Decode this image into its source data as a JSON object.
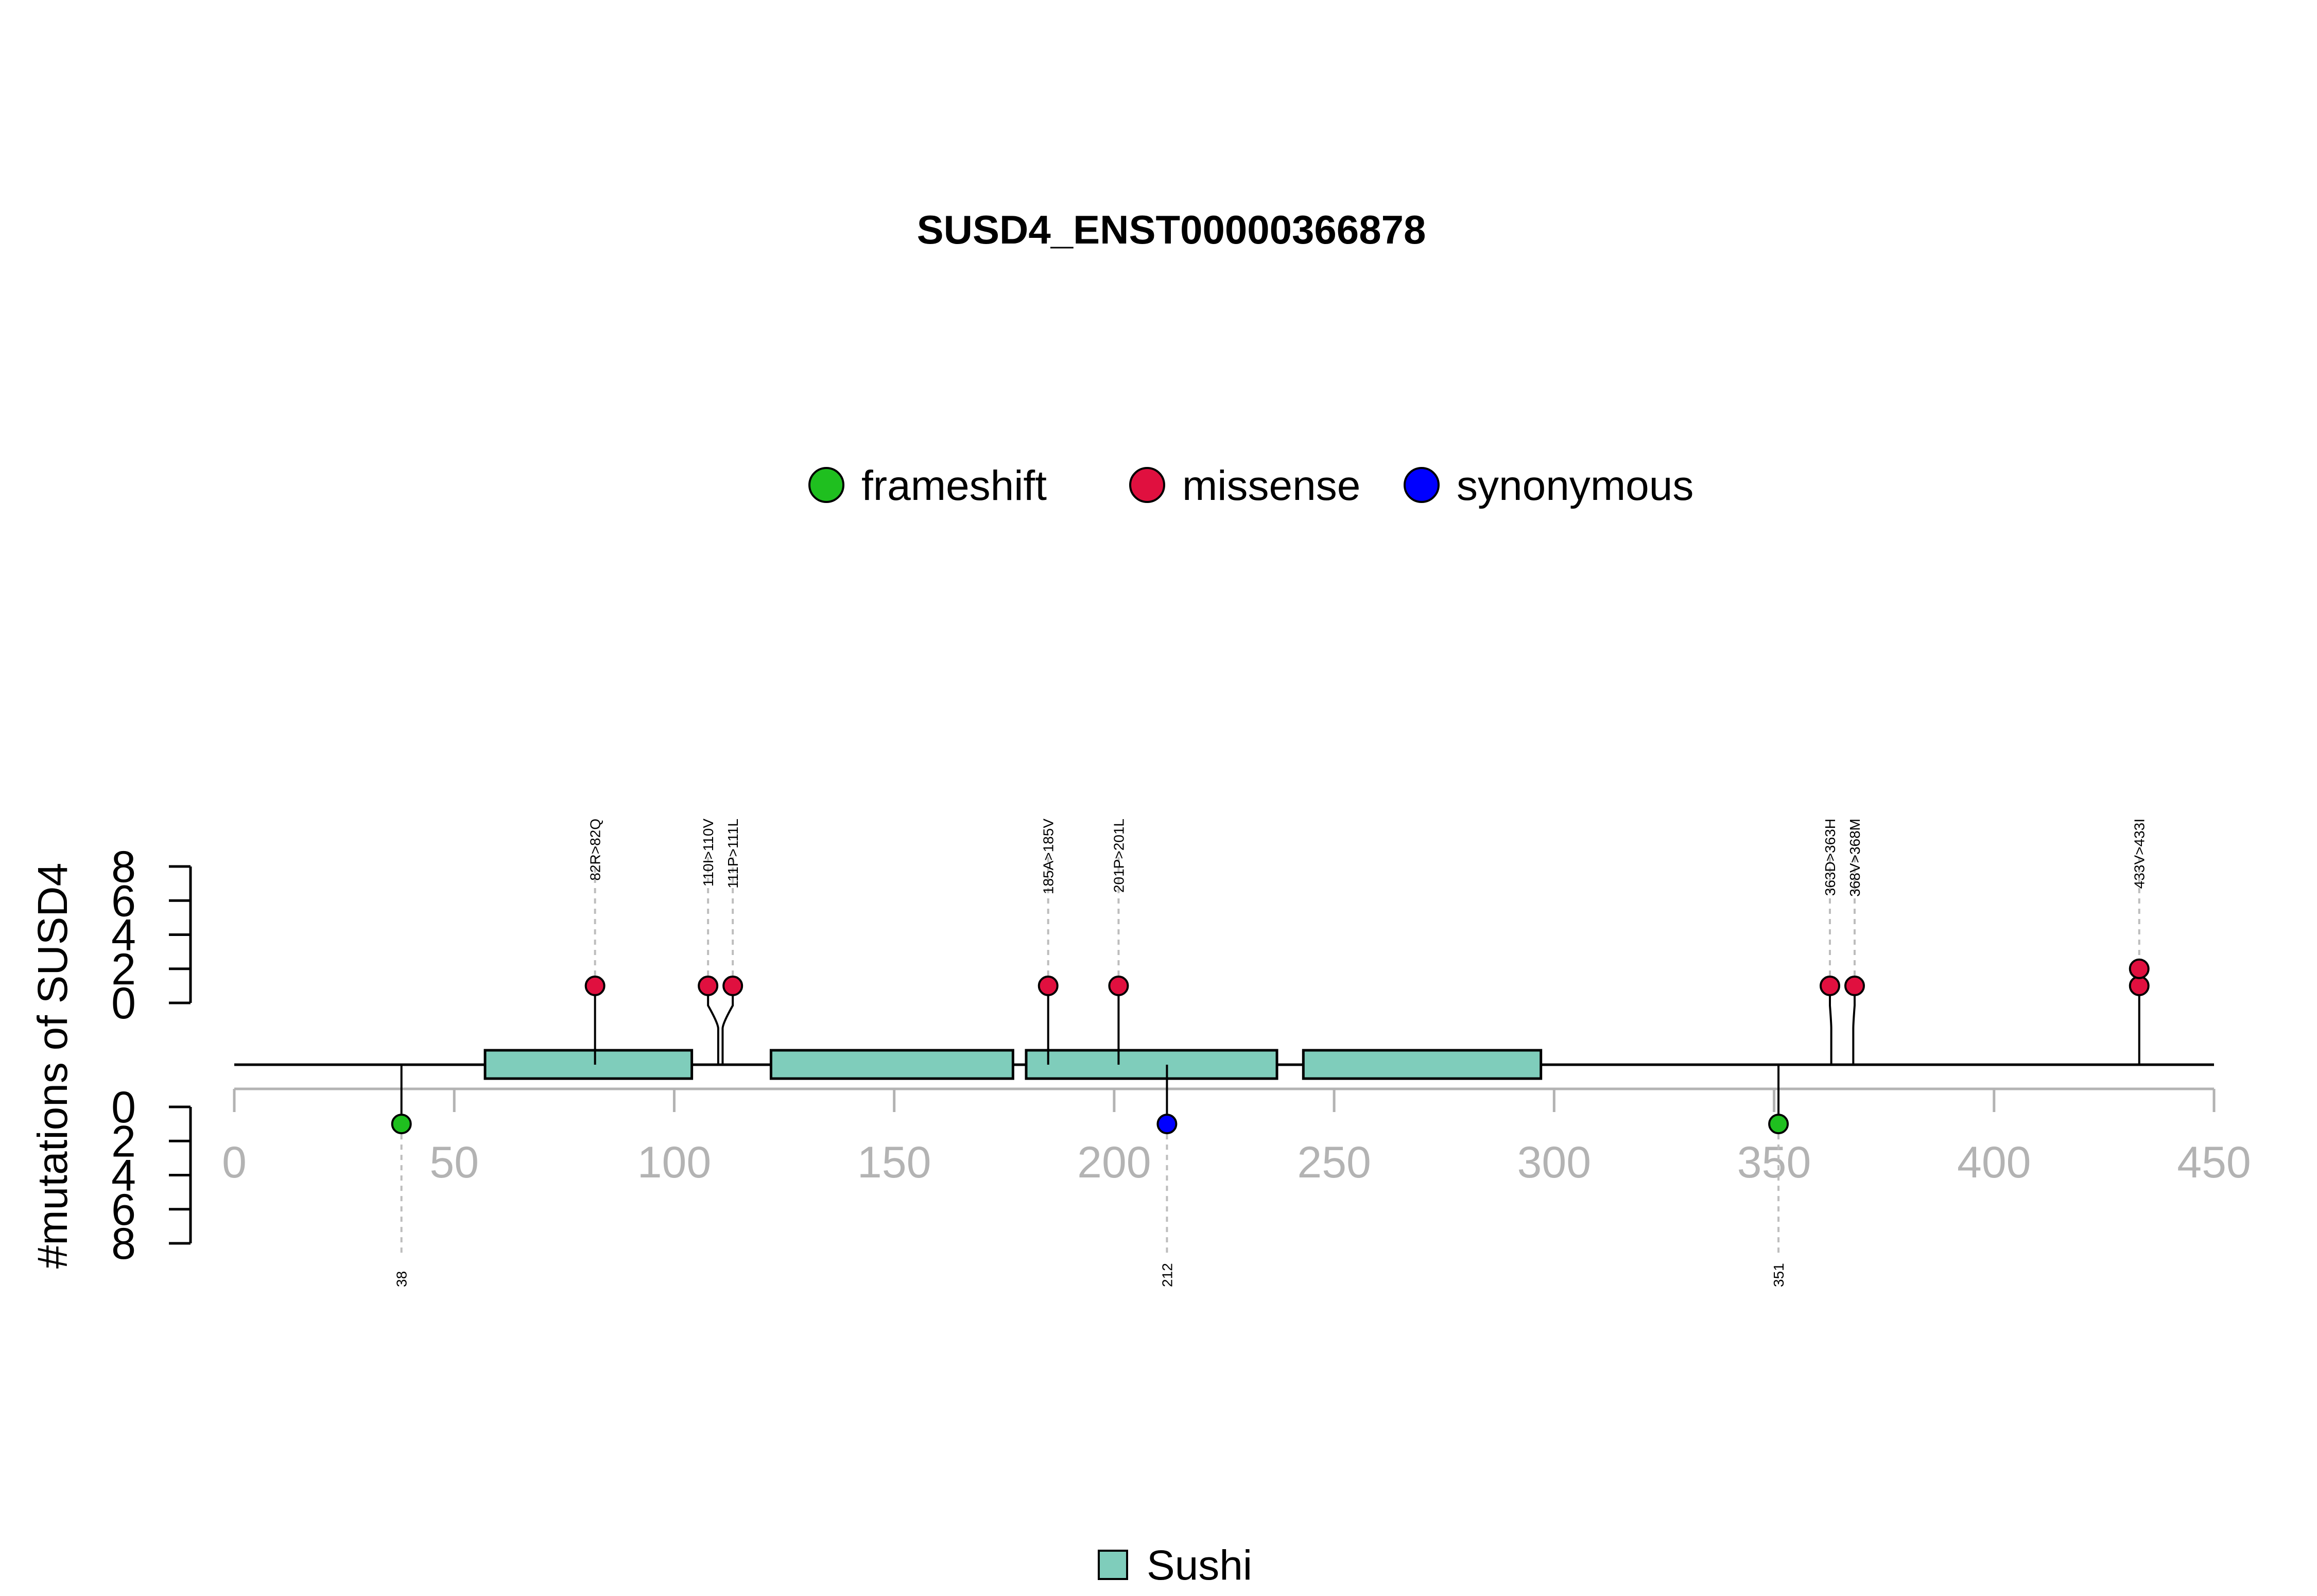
{
  "chart_data": {
    "type": "lollipop",
    "title": "SUSD4_ENST00000366878",
    "ylabel": "#mutations of SUSD4",
    "xlim": [
      0,
      450
    ],
    "x_ticks": [
      "0",
      "50",
      "100",
      "150",
      "200",
      "250",
      "300",
      "350",
      "400",
      "450"
    ],
    "y_ticks": [
      "0",
      "2",
      "4",
      "6",
      "8"
    ],
    "legend": [
      {
        "name": "frameshift",
        "color": "#1fbf1f"
      },
      {
        "name": "missense",
        "color": "#e0103f"
      },
      {
        "name": "synonymous",
        "color": "#0000ff"
      }
    ],
    "domain_legend": [
      {
        "name": "Sushi",
        "color": "#7fcdbb"
      }
    ],
    "domains": [
      {
        "name": "Sushi",
        "start": 57,
        "end": 104
      },
      {
        "name": "Sushi",
        "start": 122,
        "end": 177
      },
      {
        "name": "Sushi",
        "start": 180,
        "end": 237
      },
      {
        "name": "Sushi",
        "start": 243,
        "end": 297
      }
    ],
    "mutations_top": [
      {
        "pos": 82,
        "label": "82R>82Q",
        "type": "missense",
        "count": 1
      },
      {
        "pos": 110,
        "label": "110I>110V",
        "type": "missense",
        "count": 1
      },
      {
        "pos": 111,
        "label": "111P>111L",
        "type": "missense",
        "count": 1
      },
      {
        "pos": 185,
        "label": "185A>185V",
        "type": "missense",
        "count": 1
      },
      {
        "pos": 201,
        "label": "201P>201L",
        "type": "missense",
        "count": 1
      },
      {
        "pos": 363,
        "label": "363D>363H",
        "type": "missense",
        "count": 1
      },
      {
        "pos": 368,
        "label": "368V>368M",
        "type": "missense",
        "count": 1
      },
      {
        "pos": 433,
        "label": "433V>433I",
        "type": "missense",
        "count": 2
      }
    ],
    "mutations_bottom": [
      {
        "pos": 38,
        "label": "38",
        "type": "frameshift",
        "count": 1
      },
      {
        "pos": 212,
        "label": "212",
        "type": "synonymous",
        "count": 1
      },
      {
        "pos": 351,
        "label": "351",
        "type": "frameshift",
        "count": 1
      }
    ]
  }
}
